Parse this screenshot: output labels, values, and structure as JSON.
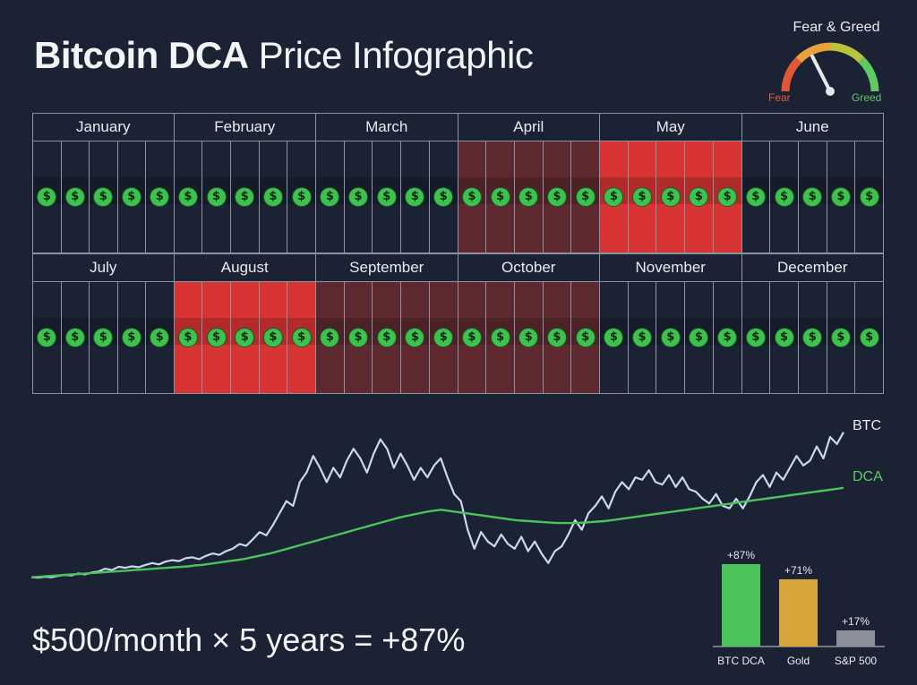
{
  "title": {
    "bold": "Bitcoin DCA",
    "rest": "Price Infographic"
  },
  "gauge": {
    "title": "Fear & Greed",
    "fear": "Fear",
    "greed": "Greed",
    "level": 0.35
  },
  "calendar": {
    "coin_symbol": "$",
    "months": [
      {
        "label": "January",
        "sentiment": "none"
      },
      {
        "label": "February",
        "sentiment": "none"
      },
      {
        "label": "March",
        "sentiment": "none"
      },
      {
        "label": "April",
        "sentiment": "fear"
      },
      {
        "label": "May",
        "sentiment": "extreme-fear"
      },
      {
        "label": "June",
        "sentiment": "none"
      },
      {
        "label": "July",
        "sentiment": "none"
      },
      {
        "label": "August",
        "sentiment": "extreme-fear"
      },
      {
        "label": "September",
        "sentiment": "fear"
      },
      {
        "label": "October",
        "sentiment": "fear"
      },
      {
        "label": "November",
        "sentiment": "none"
      },
      {
        "label": "December",
        "sentiment": "none"
      }
    ],
    "weeks_per_month": 5
  },
  "colors": {
    "btc": "#c9d8f0",
    "dca": "#4cc35a",
    "extreme_fear": "#d93434",
    "fear": "#5e2a30",
    "coin": "#3ec24f"
  },
  "formula": "$500/month × 5 years = +87%",
  "chart_data": [
    {
      "type": "line",
      "series": [
        {
          "name": "BTC",
          "color": "#c9d8f0",
          "values": [
            1.0,
            0.99,
            1.01,
            1.0,
            1.03,
            1.05,
            1.04,
            1.08,
            1.06,
            1.1,
            1.12,
            1.18,
            1.15,
            1.22,
            1.2,
            1.23,
            1.21,
            1.26,
            1.3,
            1.27,
            1.33,
            1.36,
            1.34,
            1.4,
            1.42,
            1.38,
            1.45,
            1.5,
            1.47,
            1.55,
            1.6,
            1.7,
            1.66,
            1.8,
            1.95,
            1.88,
            2.1,
            2.35,
            2.6,
            2.5,
            3.0,
            3.2,
            3.55,
            3.3,
            3.0,
            3.3,
            3.1,
            3.45,
            3.7,
            3.5,
            3.2,
            3.6,
            3.9,
            3.7,
            3.3,
            3.6,
            3.35,
            3.05,
            3.3,
            3.1,
            3.35,
            3.5,
            3.1,
            2.75,
            2.6,
            2.0,
            1.6,
            1.95,
            1.75,
            1.65,
            1.9,
            1.7,
            1.6,
            1.85,
            1.55,
            1.75,
            1.5,
            1.3,
            1.55,
            1.65,
            1.9,
            2.2,
            2.0,
            2.35,
            2.5,
            2.7,
            2.45,
            2.8,
            3.0,
            2.85,
            3.1,
            3.05,
            3.25,
            3.0,
            2.95,
            3.15,
            2.9,
            3.1,
            2.85,
            2.8,
            2.65,
            2.55,
            2.75,
            2.5,
            2.45,
            2.65,
            2.45,
            2.7,
            3.0,
            3.15,
            2.9,
            3.2,
            3.05,
            3.3,
            3.55,
            3.35,
            3.45,
            3.75,
            3.5,
            3.95,
            3.8,
            4.05
          ]
        },
        {
          "name": "DCA",
          "color": "#4cc35a",
          "values": [
            1.0,
            1.01,
            1.02,
            1.03,
            1.04,
            1.05,
            1.06,
            1.07,
            1.08,
            1.09,
            1.1,
            1.11,
            1.12,
            1.13,
            1.14,
            1.15,
            1.16,
            1.17,
            1.18,
            1.19,
            1.2,
            1.21,
            1.22,
            1.23,
            1.25,
            1.26,
            1.28,
            1.3,
            1.32,
            1.34,
            1.36,
            1.38,
            1.41,
            1.44,
            1.47,
            1.5,
            1.54,
            1.58,
            1.62,
            1.66,
            1.7,
            1.74,
            1.78,
            1.82,
            1.86,
            1.9,
            1.94,
            1.98,
            2.02,
            2.06,
            2.1,
            2.14,
            2.18,
            2.22,
            2.26,
            2.29,
            2.32,
            2.35,
            2.38,
            2.4,
            2.42,
            2.4,
            2.38,
            2.36,
            2.34,
            2.32,
            2.3,
            2.28,
            2.26,
            2.24,
            2.22,
            2.2,
            2.19,
            2.18,
            2.17,
            2.16,
            2.15,
            2.14,
            2.14,
            2.14,
            2.14,
            2.15,
            2.16,
            2.17,
            2.18,
            2.2,
            2.22,
            2.24,
            2.26,
            2.28,
            2.3,
            2.32,
            2.34,
            2.36,
            2.38,
            2.4,
            2.42,
            2.44,
            2.46,
            2.48,
            2.5,
            2.52,
            2.54,
            2.56,
            2.58,
            2.6,
            2.62,
            2.64,
            2.66,
            2.68,
            2.7,
            2.72,
            2.74,
            2.76,
            2.78,
            2.8,
            2.82,
            2.84,
            2.86,
            2.88
          ]
        }
      ]
    },
    {
      "type": "bar",
      "categories": [
        "BTC DCA",
        "Gold",
        "S&P 500"
      ],
      "values": [
        87,
        71,
        17
      ],
      "value_labels": [
        "+87%",
        "+71%",
        "+17%"
      ],
      "colors": [
        "#4cc35a",
        "#d6a53c",
        "#8a8f99"
      ],
      "ylim": [
        0,
        87
      ]
    }
  ]
}
